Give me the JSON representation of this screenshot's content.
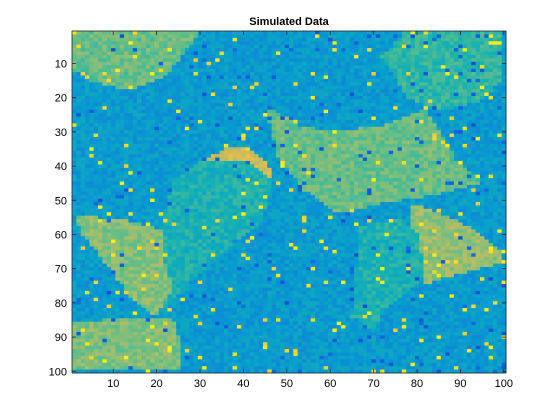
{
  "chart_data": {
    "type": "heatmap",
    "title": "Simulated Data",
    "xlabel": "",
    "ylabel": "",
    "xlim": [
      0.5,
      100.5
    ],
    "ylim": [
      0.5,
      100.5
    ],
    "y_reversed": true,
    "grid": false,
    "colormap": "parula",
    "n_rows": 100,
    "n_cols": 100,
    "x_ticks": [
      10,
      20,
      30,
      40,
      50,
      60,
      70,
      80,
      90,
      100
    ],
    "y_ticks": [
      10,
      20,
      30,
      40,
      50,
      60,
      70,
      80,
      90,
      100
    ],
    "background_level": 0.3,
    "noise_amplitude": 0.06,
    "speckle_fraction": 0.05,
    "regions": [
      {
        "name": "top-left",
        "level": 0.52,
        "polygon": [
          [
            1,
            1
          ],
          [
            1,
            12
          ],
          [
            5,
            15
          ],
          [
            14,
            18
          ],
          [
            22,
            14
          ],
          [
            27,
            6
          ],
          [
            30,
            1
          ]
        ]
      },
      {
        "name": "top-right",
        "level": 0.44,
        "polygon": [
          [
            77,
            1
          ],
          [
            72,
            8
          ],
          [
            78,
            20
          ],
          [
            86,
            24
          ],
          [
            95,
            21
          ],
          [
            100,
            14
          ],
          [
            100,
            1
          ]
        ]
      },
      {
        "name": "central-band",
        "level": 0.52,
        "polygon": [
          [
            45,
            22
          ],
          [
            53,
            28
          ],
          [
            60,
            30
          ],
          [
            73,
            28
          ],
          [
            82,
            23
          ],
          [
            89,
            38
          ],
          [
            95,
            45
          ],
          [
            82,
            49
          ],
          [
            72,
            51
          ],
          [
            62,
            54
          ],
          [
            54,
            47
          ],
          [
            48,
            37
          ]
        ]
      },
      {
        "name": "small-disk",
        "level": 0.68,
        "polygon": [
          [
            29,
            42
          ],
          [
            31,
            38
          ],
          [
            36,
            35
          ],
          [
            41,
            35
          ],
          [
            45,
            38
          ],
          [
            47,
            43
          ],
          [
            45,
            49
          ],
          [
            40,
            51
          ],
          [
            34,
            50
          ],
          [
            30,
            47
          ]
        ]
      },
      {
        "name": "middle-left",
        "level": 0.4,
        "polygon": [
          [
            24,
            45
          ],
          [
            31,
            38
          ],
          [
            42,
            39
          ],
          [
            47,
            45
          ],
          [
            44,
            57
          ],
          [
            38,
            62
          ],
          [
            33,
            68
          ],
          [
            27,
            75
          ],
          [
            22,
            82
          ],
          [
            18,
            74
          ],
          [
            20,
            62
          ],
          [
            22,
            53
          ]
        ]
      },
      {
        "name": "left-wedge",
        "level": 0.56,
        "polygon": [
          [
            1,
            54
          ],
          [
            7,
            55
          ],
          [
            14,
            56
          ],
          [
            22,
            59
          ],
          [
            22,
            68
          ],
          [
            24,
            76
          ],
          [
            20,
            84
          ],
          [
            14,
            78
          ],
          [
            8,
            68
          ],
          [
            3,
            60
          ]
        ]
      },
      {
        "name": "bottom-left",
        "level": 0.55,
        "polygon": [
          [
            1,
            86
          ],
          [
            8,
            85
          ],
          [
            16,
            84
          ],
          [
            24,
            85
          ],
          [
            26,
            93
          ],
          [
            25,
            100
          ],
          [
            1,
            100
          ]
        ]
      },
      {
        "name": "right-wedge",
        "level": 0.58,
        "polygon": [
          [
            79,
            51
          ],
          [
            86,
            54
          ],
          [
            94,
            59
          ],
          [
            99,
            64
          ],
          [
            100,
            68
          ],
          [
            92,
            71
          ],
          [
            86,
            73
          ],
          [
            82,
            75
          ],
          [
            79,
            70
          ],
          [
            78,
            60
          ]
        ]
      },
      {
        "name": "mid-right",
        "level": 0.4,
        "polygon": [
          [
            67,
            58
          ],
          [
            76,
            55
          ],
          [
            80,
            59
          ],
          [
            82,
            72
          ],
          [
            77,
            78
          ],
          [
            73,
            82
          ],
          [
            70,
            88
          ],
          [
            65,
            84
          ],
          [
            66,
            70
          ]
        ]
      }
    ]
  }
}
